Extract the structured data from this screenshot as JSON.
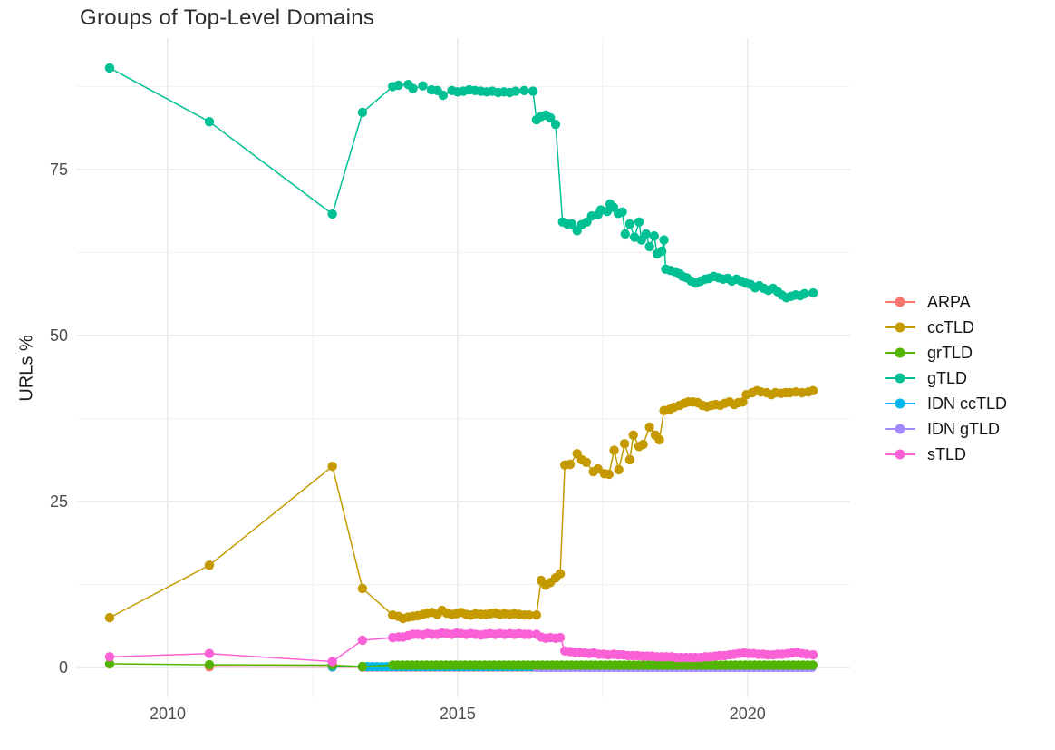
{
  "chart_data": {
    "type": "line",
    "title": "Groups of Top-Level Domains",
    "ylabel": "URLs %",
    "xlabel": "",
    "legend_position": "right",
    "axes": {
      "x_range": [
        2008.4375,
        2021.77
      ],
      "y_range": [
        -4.5,
        94.8
      ],
      "x_ticks": {
        "values": [
          2010,
          2015,
          2020
        ],
        "labels": [
          "2010",
          "2015",
          "2020"
        ]
      },
      "y_ticks": {
        "values": [
          0,
          25,
          50,
          75
        ],
        "labels": [
          "0",
          "25",
          "50",
          "75"
        ]
      },
      "x_minor": [
        2012.5,
        2017.5
      ],
      "y_minor": [
        12.5,
        37.5,
        62.5,
        87.5
      ],
      "grid": true
    },
    "draw_order": [
      "ARPA",
      "IDN ccTLD",
      "IDN gTLD",
      "grTLD",
      "sTLD",
      "ccTLD",
      "gTLD"
    ],
    "series": [
      {
        "name": "ARPA",
        "color": "#F8766D",
        "points": [
          [
            2010.72,
            0.1
          ],
          [
            2012.84,
            0.08
          ]
        ],
        "fill": [
          {
            "range": [
              2013.36,
              2021.13
            ],
            "step": 0.0833,
            "value": 0.05
          }
        ]
      },
      {
        "name": "ccTLD",
        "color": "#C49A00",
        "points": [
          [
            2009.0,
            7.5
          ],
          [
            2010.72,
            15.4
          ],
          [
            2012.84,
            30.3
          ],
          [
            2013.36,
            11.9
          ],
          [
            2013.88,
            7.9
          ],
          [
            2013.98,
            7.7
          ],
          [
            2014.06,
            7.4
          ],
          [
            2014.15,
            7.6
          ],
          [
            2014.23,
            7.7
          ],
          [
            2014.31,
            7.8
          ],
          [
            2014.4,
            8.0
          ],
          [
            2014.48,
            8.2
          ],
          [
            2014.56,
            8.3
          ],
          [
            2014.65,
            8.0
          ],
          [
            2014.73,
            8.6
          ],
          [
            2014.81,
            8.2
          ],
          [
            2014.9,
            8.0
          ],
          [
            2014.98,
            8.1
          ],
          [
            2015.06,
            8.3
          ],
          [
            2015.15,
            8.0
          ],
          [
            2015.23,
            7.9
          ],
          [
            2015.31,
            8.1
          ],
          [
            2015.4,
            8.0
          ],
          [
            2015.48,
            8.0
          ],
          [
            2015.56,
            8.1
          ],
          [
            2015.65,
            8.2
          ],
          [
            2015.73,
            8.0
          ],
          [
            2015.81,
            8.1
          ],
          [
            2015.9,
            8.0
          ],
          [
            2015.98,
            8.1
          ],
          [
            2016.06,
            8.0
          ],
          [
            2016.15,
            7.9
          ],
          [
            2016.23,
            7.9
          ],
          [
            2016.36,
            7.9
          ],
          [
            2016.44,
            13.1
          ],
          [
            2016.52,
            12.4
          ],
          [
            2016.6,
            12.8
          ],
          [
            2016.69,
            13.5
          ],
          [
            2016.77,
            14.1
          ],
          [
            2016.85,
            30.5
          ],
          [
            2016.94,
            30.6
          ],
          [
            2017.06,
            32.2
          ],
          [
            2017.14,
            31.3
          ],
          [
            2017.22,
            30.9
          ],
          [
            2017.34,
            29.5
          ],
          [
            2017.42,
            29.9
          ],
          [
            2017.53,
            29.2
          ],
          [
            2017.61,
            29.1
          ],
          [
            2017.7,
            32.7
          ],
          [
            2017.78,
            29.8
          ],
          [
            2017.88,
            33.7
          ],
          [
            2017.97,
            31.3
          ],
          [
            2018.03,
            35.0
          ],
          [
            2018.13,
            33.3
          ],
          [
            2018.2,
            33.6
          ],
          [
            2018.31,
            36.2
          ],
          [
            2018.41,
            35.0
          ],
          [
            2018.48,
            34.3
          ],
          [
            2018.56,
            38.7
          ],
          [
            2018.66,
            38.9
          ],
          [
            2018.73,
            39.2
          ],
          [
            2018.83,
            39.5
          ],
          [
            2018.91,
            39.8
          ],
          [
            2018.98,
            40.0
          ],
          [
            2019.06,
            40.0
          ],
          [
            2019.14,
            39.9
          ],
          [
            2019.22,
            39.5
          ],
          [
            2019.3,
            39.3
          ],
          [
            2019.38,
            39.5
          ],
          [
            2019.45,
            39.6
          ],
          [
            2019.53,
            39.5
          ],
          [
            2019.61,
            39.8
          ],
          [
            2019.69,
            40.0
          ],
          [
            2019.77,
            39.6
          ],
          [
            2019.84,
            39.9
          ],
          [
            2019.92,
            40.0
          ],
          [
            2019.98,
            41.1
          ],
          [
            2020.08,
            41.4
          ],
          [
            2020.16,
            41.7
          ],
          [
            2020.23,
            41.5
          ],
          [
            2020.33,
            41.4
          ],
          [
            2020.41,
            41.1
          ],
          [
            2020.48,
            41.4
          ],
          [
            2020.58,
            41.3
          ],
          [
            2020.66,
            41.4
          ],
          [
            2020.73,
            41.4
          ],
          [
            2020.83,
            41.5
          ],
          [
            2020.94,
            41.4
          ],
          [
            2021.05,
            41.5
          ],
          [
            2021.13,
            41.7
          ]
        ]
      },
      {
        "name": "grTLD",
        "color": "#53B400",
        "points": [
          [
            2009.0,
            0.55
          ],
          [
            2010.72,
            0.4
          ],
          [
            2012.84,
            0.35
          ],
          [
            2013.36,
            0.15
          ]
        ],
        "fill": [
          {
            "range": [
              2013.88,
              2021.13
            ],
            "step": 0.0833,
            "value": 0.35
          }
        ]
      },
      {
        "name": "gTLD",
        "color": "#00C094",
        "points": [
          [
            2009.0,
            90.3
          ],
          [
            2010.72,
            82.2
          ],
          [
            2012.84,
            68.3
          ],
          [
            2013.36,
            83.6
          ],
          [
            2013.88,
            87.5
          ],
          [
            2013.98,
            87.7
          ],
          [
            2014.15,
            87.8
          ],
          [
            2014.23,
            87.2
          ],
          [
            2014.4,
            87.6
          ],
          [
            2014.55,
            87.0
          ],
          [
            2014.65,
            86.9
          ],
          [
            2014.75,
            86.2
          ],
          [
            2014.9,
            86.9
          ],
          [
            2015.0,
            86.7
          ],
          [
            2015.1,
            86.8
          ],
          [
            2015.2,
            87.0
          ],
          [
            2015.3,
            86.9
          ],
          [
            2015.4,
            86.8
          ],
          [
            2015.5,
            86.7
          ],
          [
            2015.6,
            86.8
          ],
          [
            2015.7,
            86.6
          ],
          [
            2015.8,
            86.7
          ],
          [
            2015.9,
            86.6
          ],
          [
            2016.0,
            86.8
          ],
          [
            2016.15,
            86.9
          ],
          [
            2016.3,
            86.8
          ],
          [
            2016.36,
            82.5
          ],
          [
            2016.44,
            83.0
          ],
          [
            2016.52,
            83.2
          ],
          [
            2016.6,
            82.8
          ],
          [
            2016.69,
            81.8
          ],
          [
            2016.81,
            67.1
          ],
          [
            2016.89,
            66.8
          ],
          [
            2016.97,
            66.8
          ],
          [
            2017.06,
            65.8
          ],
          [
            2017.14,
            66.7
          ],
          [
            2017.23,
            67.1
          ],
          [
            2017.31,
            68.0
          ],
          [
            2017.42,
            68.2
          ],
          [
            2017.47,
            68.9
          ],
          [
            2017.58,
            68.7
          ],
          [
            2017.63,
            69.8
          ],
          [
            2017.69,
            69.3
          ],
          [
            2017.77,
            68.4
          ],
          [
            2017.84,
            68.6
          ],
          [
            2017.89,
            65.3
          ],
          [
            2017.97,
            66.8
          ],
          [
            2018.05,
            64.8
          ],
          [
            2018.13,
            67.1
          ],
          [
            2018.17,
            64.4
          ],
          [
            2018.25,
            65.3
          ],
          [
            2018.31,
            63.4
          ],
          [
            2018.39,
            65.0
          ],
          [
            2018.44,
            62.3
          ],
          [
            2018.52,
            62.7
          ],
          [
            2018.56,
            64.4
          ],
          [
            2018.59,
            60.0
          ],
          [
            2018.67,
            59.8
          ],
          [
            2018.75,
            59.6
          ],
          [
            2018.83,
            59.3
          ],
          [
            2018.88,
            58.9
          ],
          [
            2018.95,
            58.7
          ],
          [
            2019.03,
            58.2
          ],
          [
            2019.11,
            57.9
          ],
          [
            2019.19,
            58.2
          ],
          [
            2019.27,
            58.5
          ],
          [
            2019.34,
            58.6
          ],
          [
            2019.42,
            58.9
          ],
          [
            2019.5,
            58.7
          ],
          [
            2019.58,
            58.5
          ],
          [
            2019.66,
            58.6
          ],
          [
            2019.73,
            58.2
          ],
          [
            2019.81,
            58.5
          ],
          [
            2019.89,
            58.2
          ],
          [
            2019.97,
            57.9
          ],
          [
            2020.05,
            57.7
          ],
          [
            2020.13,
            57.2
          ],
          [
            2020.2,
            57.5
          ],
          [
            2020.28,
            57.1
          ],
          [
            2020.36,
            56.8
          ],
          [
            2020.44,
            57.1
          ],
          [
            2020.52,
            56.6
          ],
          [
            2020.59,
            56.1
          ],
          [
            2020.67,
            55.7
          ],
          [
            2020.75,
            55.9
          ],
          [
            2020.83,
            56.1
          ],
          [
            2020.91,
            56.0
          ],
          [
            2020.98,
            56.3
          ],
          [
            2021.13,
            56.4
          ]
        ]
      },
      {
        "name": "IDN ccTLD",
        "color": "#00B6EB",
        "points": [
          [
            2012.84,
            0.1
          ]
        ],
        "fill": [
          {
            "range": [
              2013.36,
              2021.13
            ],
            "step": 0.0833,
            "value": 0.12
          }
        ]
      },
      {
        "name": "IDN gTLD",
        "color": "#A58AFF",
        "points": [],
        "fill": [
          {
            "range": [
              2016.36,
              2021.13
            ],
            "step": 0.0833,
            "value": 0.02
          }
        ]
      },
      {
        "name": "sTLD",
        "color": "#FB61D7",
        "points": [
          [
            2009.0,
            1.6
          ],
          [
            2010.72,
            2.1
          ],
          [
            2012.84,
            0.9
          ],
          [
            2013.36,
            4.1
          ],
          [
            2013.88,
            4.5
          ],
          [
            2013.98,
            4.6
          ],
          [
            2014.06,
            4.6
          ],
          [
            2014.15,
            4.8
          ],
          [
            2014.23,
            5.0
          ],
          [
            2014.31,
            5.0
          ],
          [
            2014.4,
            4.9
          ],
          [
            2014.48,
            5.1
          ],
          [
            2014.56,
            5.0
          ],
          [
            2014.65,
            5.0
          ],
          [
            2014.73,
            5.2
          ],
          [
            2014.81,
            5.1
          ],
          [
            2014.9,
            5.0
          ],
          [
            2014.98,
            5.2
          ],
          [
            2015.06,
            5.1
          ],
          [
            2015.15,
            5.0
          ],
          [
            2015.23,
            5.1
          ],
          [
            2015.31,
            5.0
          ],
          [
            2015.4,
            4.9
          ],
          [
            2015.48,
            5.0
          ],
          [
            2015.56,
            5.1
          ],
          [
            2015.65,
            5.0
          ],
          [
            2015.73,
            5.1
          ],
          [
            2015.81,
            5.0
          ],
          [
            2015.9,
            5.1
          ],
          [
            2015.98,
            5.0
          ],
          [
            2016.06,
            5.1
          ],
          [
            2016.15,
            5.0
          ],
          [
            2016.23,
            5.0
          ],
          [
            2016.36,
            5.0
          ],
          [
            2016.44,
            4.6
          ],
          [
            2016.52,
            4.4
          ],
          [
            2016.6,
            4.5
          ],
          [
            2016.69,
            4.4
          ],
          [
            2016.77,
            4.5
          ],
          [
            2016.85,
            2.5
          ],
          [
            2016.94,
            2.4
          ],
          [
            2017.02,
            2.3
          ],
          [
            2017.1,
            2.3
          ],
          [
            2017.19,
            2.2
          ],
          [
            2017.27,
            2.1
          ],
          [
            2017.35,
            2.2
          ],
          [
            2017.44,
            2.0
          ],
          [
            2017.52,
            2.0
          ],
          [
            2017.6,
            1.9
          ],
          [
            2017.69,
            2.0
          ],
          [
            2017.77,
            1.9
          ],
          [
            2017.85,
            1.9
          ],
          [
            2017.94,
            1.8
          ],
          [
            2018.02,
            1.8
          ],
          [
            2018.1,
            1.8
          ],
          [
            2018.19,
            1.7
          ],
          [
            2018.27,
            1.7
          ],
          [
            2018.35,
            1.7
          ],
          [
            2018.44,
            1.6
          ],
          [
            2018.52,
            1.6
          ],
          [
            2018.6,
            1.6
          ],
          [
            2018.69,
            1.6
          ],
          [
            2018.77,
            1.5
          ],
          [
            2018.85,
            1.5
          ],
          [
            2018.94,
            1.5
          ],
          [
            2019.02,
            1.5
          ],
          [
            2019.1,
            1.5
          ],
          [
            2019.19,
            1.5
          ],
          [
            2019.27,
            1.6
          ],
          [
            2019.35,
            1.6
          ],
          [
            2019.44,
            1.7
          ],
          [
            2019.52,
            1.8
          ],
          [
            2019.6,
            1.8
          ],
          [
            2019.69,
            1.9
          ],
          [
            2019.77,
            2.0
          ],
          [
            2019.85,
            2.1
          ],
          [
            2019.94,
            2.2
          ],
          [
            2020.02,
            2.1
          ],
          [
            2020.1,
            2.1
          ],
          [
            2020.19,
            2.0
          ],
          [
            2020.27,
            2.0
          ],
          [
            2020.35,
            1.9
          ],
          [
            2020.44,
            1.9
          ],
          [
            2020.52,
            2.0
          ],
          [
            2020.6,
            2.0
          ],
          [
            2020.69,
            2.1
          ],
          [
            2020.77,
            2.2
          ],
          [
            2020.85,
            2.3
          ],
          [
            2020.94,
            2.1
          ],
          [
            2021.02,
            2.0
          ],
          [
            2021.13,
            1.9
          ]
        ]
      }
    ]
  }
}
